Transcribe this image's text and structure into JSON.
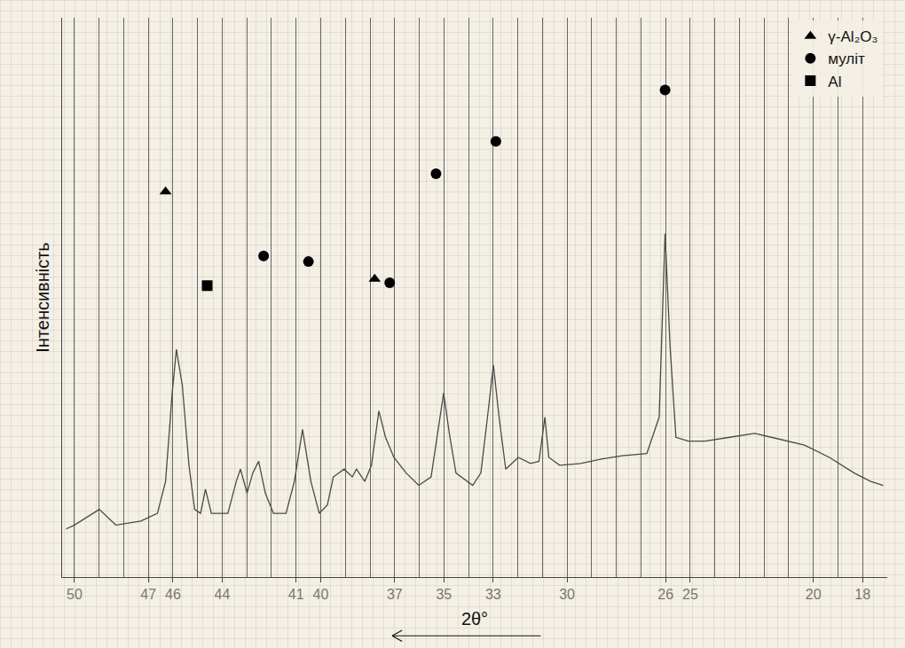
{
  "chart_data": {
    "type": "line",
    "x_label": "2θ°",
    "y_label": "Інтенсивність",
    "xlim": [
      50.5,
      17
    ],
    "xticks": [
      50,
      47,
      46,
      44,
      41,
      40,
      37,
      35,
      33,
      30,
      26,
      25,
      20,
      18
    ],
    "ylim": [
      0,
      100
    ],
    "grid": true,
    "tick_labels": "x",
    "legend": "top right",
    "series": [
      {
        "type": "line",
        "color": "#4a4a4a",
        "x": [
          50.34,
          50.0,
          48.99,
          48.32,
          47.31,
          46.63,
          46.3,
          46.03,
          45.86,
          45.62,
          45.35,
          45.12,
          44.88,
          44.68,
          44.44,
          43.77,
          43.43,
          43.26,
          42.99,
          42.76,
          42.52,
          42.25,
          41.92,
          41.41,
          41.07,
          40.74,
          40.4,
          40.06,
          39.73,
          39.49,
          39.05,
          38.72,
          38.55,
          38.21,
          37.94,
          37.64,
          37.37,
          37.03,
          36.53,
          36.02,
          35.52,
          35.25,
          35.01,
          34.78,
          34.51,
          33.83,
          33.5,
          33.23,
          32.99,
          32.76,
          32.49,
          31.98,
          31.48,
          31.14,
          30.9,
          30.74,
          30.3,
          29.45,
          28.61,
          27.77,
          26.76,
          26.26,
          26.02,
          25.82,
          25.58,
          25.08,
          24.4,
          23.39,
          22.38,
          21.71,
          20.36,
          19.35,
          18.34,
          17.67,
          17.16
        ],
        "values": [
          8.6,
          9.3,
          12.1,
          9.3,
          10.0,
          11.4,
          17.1,
          32.9,
          40.7,
          34.3,
          20.0,
          12.1,
          11.4,
          15.7,
          11.4,
          11.4,
          17.1,
          19.3,
          15.0,
          18.6,
          20.7,
          15.0,
          11.4,
          11.4,
          17.1,
          26.4,
          17.1,
          11.4,
          12.9,
          17.9,
          19.3,
          17.9,
          19.3,
          17.1,
          20.0,
          29.7,
          25.0,
          21.4,
          18.6,
          16.4,
          17.9,
          25.7,
          32.9,
          25.7,
          18.6,
          16.4,
          18.6,
          28.6,
          37.9,
          28.6,
          19.3,
          21.4,
          20.3,
          20.7,
          28.6,
          21.4,
          20.0,
          20.3,
          21.1,
          21.7,
          22.1,
          28.6,
          61.4,
          41.4,
          25.0,
          24.3,
          24.3,
          25.0,
          25.7,
          25.0,
          23.6,
          21.4,
          18.6,
          17.1,
          16.4
        ]
      },
      {
        "name": "γ-Al₂O₃",
        "type": "scatter",
        "marker": "triangle-up",
        "color": "#000000",
        "x": [
          46.3,
          37.81
        ],
        "values": [
          68.9,
          53.3
        ]
      },
      {
        "name": "муліт",
        "type": "scatter",
        "marker": "circle",
        "color": "#000000",
        "x": [
          42.32,
          40.5,
          37.2,
          35.32,
          32.89,
          26.02
        ],
        "values": [
          57.4,
          56.4,
          52.6,
          72.1,
          77.9,
          87.1
        ]
      },
      {
        "name": "Al",
        "type": "scatter",
        "marker": "square",
        "color": "#000000",
        "x": [
          44.61
        ],
        "values": [
          52.1
        ]
      }
    ]
  }
}
